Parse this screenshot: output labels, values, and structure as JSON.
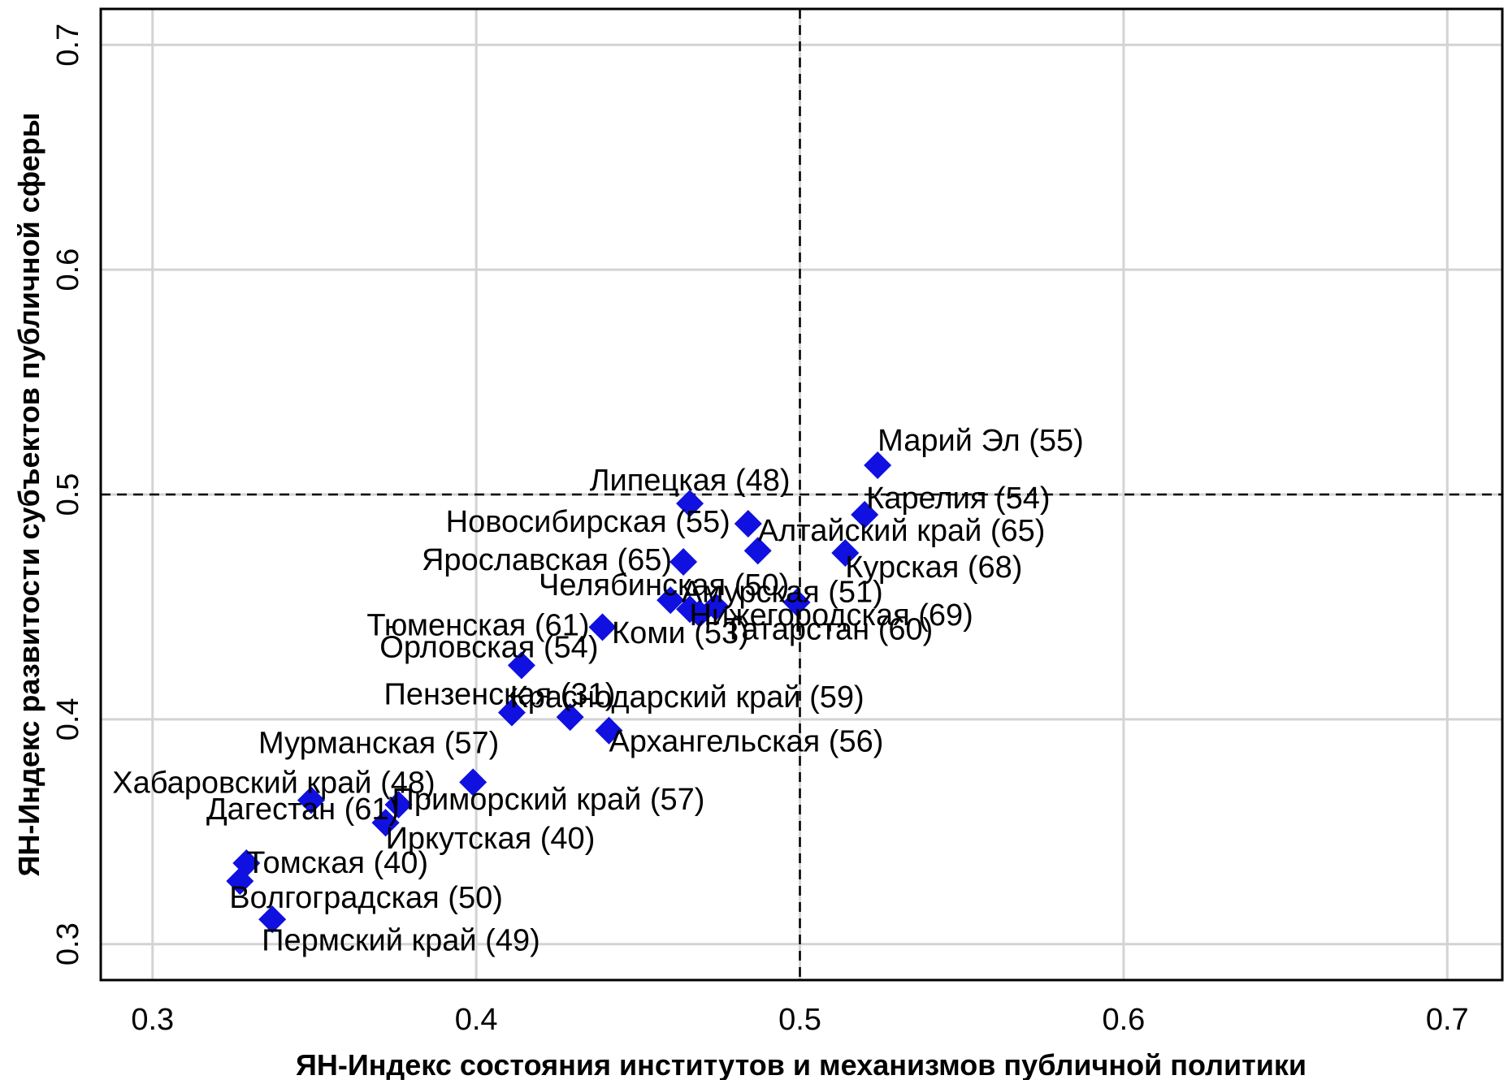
{
  "chart_data": {
    "type": "scatter",
    "title": "",
    "xlabel": "ЯН-Индекс состояния институтов и механизмов публичной политики",
    "ylabel": "ЯН-Индекс развитости субъектов публичной сферы",
    "xlim": [
      0.284,
      0.717
    ],
    "ylim": [
      0.284,
      0.716
    ],
    "x_ticks": [
      "0.3",
      "0.4",
      "0.5",
      "0.6",
      "0.7"
    ],
    "y_ticks": [
      "0.3",
      "0.4",
      "0.5",
      "0.6",
      "0.7"
    ],
    "grid": true,
    "reference_lines": {
      "x": 0.5,
      "y": 0.5
    },
    "marker_color": "#1010e0",
    "marker_shape": "diamond",
    "points": [
      {
        "label": "Марий Эл (55)",
        "x": 0.524,
        "y": 0.513
      },
      {
        "label": "Карелия (54)",
        "x": 0.52,
        "y": 0.491
      },
      {
        "label": "Алтайский край (65)",
        "x": 0.487,
        "y": 0.475
      },
      {
        "label": "Курская (68)",
        "x": 0.514,
        "y": 0.474
      },
      {
        "label": "Липецкая (48)",
        "x": 0.466,
        "y": 0.496
      },
      {
        "label": "Новосибирская (55)",
        "x": 0.484,
        "y": 0.487
      },
      {
        "label": "Ярославская (65)",
        "x": 0.464,
        "y": 0.47
      },
      {
        "label": "Челябинская (50)",
        "x": 0.46,
        "y": 0.453
      },
      {
        "label": "Амурская (51)",
        "x": 0.474,
        "y": 0.45
      },
      {
        "label": "Нижегородская (69)",
        "x": 0.499,
        "y": 0.452
      },
      {
        "label": "Тюменская (61)",
        "x": 0.439,
        "y": 0.441
      },
      {
        "label": "Коми (53)",
        "x": 0.466,
        "y": 0.449
      },
      {
        "label": "Татарстан (60)",
        "x": 0.469,
        "y": 0.447
      },
      {
        "label": "Орловская (54)",
        "x": 0.414,
        "y": 0.424
      },
      {
        "label": "Краснодарский край (59)",
        "x": 0.429,
        "y": 0.401
      },
      {
        "label": "Пензенская (31)",
        "x": 0.411,
        "y": 0.403
      },
      {
        "label": "Архангельская (56)",
        "x": 0.441,
        "y": 0.395
      },
      {
        "label": "Мурманская (57)",
        "x": 0.399,
        "y": 0.372
      },
      {
        "label": "Хабаровский край (48)",
        "x": 0.349,
        "y": 0.364
      },
      {
        "label": "Приморский край (57)",
        "x": 0.376,
        "y": 0.362
      },
      {
        "label": "Дагестан (61)",
        "x": 0.372,
        "y": 0.354
      },
      {
        "label": "Иркутская (40)",
        "x": 0.372,
        "y": 0.354
      },
      {
        "label": "Томская (40)",
        "x": 0.329,
        "y": 0.336
      },
      {
        "label": "Волгоградская (50)",
        "x": 0.327,
        "y": 0.328
      },
      {
        "label": "Пермский край (49)",
        "x": 0.337,
        "y": 0.311
      }
    ]
  }
}
